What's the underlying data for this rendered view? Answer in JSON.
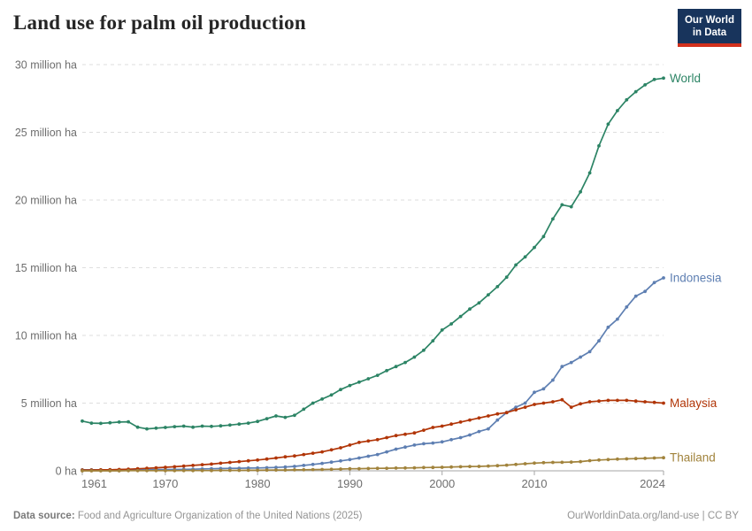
{
  "header": {
    "title": "Land use for palm oil production",
    "logo": {
      "line1": "Our World",
      "line2": "in Data"
    }
  },
  "footer": {
    "source_label": "Data source:",
    "source_text": "Food and Agriculture Organization of the United Nations (2025)",
    "url_text": "OurWorldinData.org/land-use",
    "separator": " | ",
    "license": "CC BY"
  },
  "colors": {
    "world": "#2C8465",
    "indonesia": "#5E7FB2",
    "malaysia": "#B13507",
    "thailand": "#A1833C",
    "grid": "#dedede",
    "axis": "#a6a6a6"
  },
  "chart_data": {
    "type": "line",
    "title": "Land use for palm oil production",
    "unit": "million ha",
    "grid": "horizontal-dashed",
    "legend_position": "right-of-line-end",
    "x_range": [
      1961,
      2024
    ],
    "ylim": [
      0,
      30
    ],
    "xticks": [
      1961,
      1970,
      1980,
      1990,
      2000,
      2010,
      2024
    ],
    "yticks": [
      0,
      5,
      10,
      15,
      20,
      25,
      30
    ],
    "ytick_labels": [
      "0 ha",
      "5 million ha",
      "10 million ha",
      "15 million ha",
      "20 million ha",
      "25 million ha",
      "30 million ha"
    ],
    "years": [
      1961,
      1962,
      1963,
      1964,
      1965,
      1966,
      1967,
      1968,
      1969,
      1970,
      1971,
      1972,
      1973,
      1974,
      1975,
      1976,
      1977,
      1978,
      1979,
      1980,
      1981,
      1982,
      1983,
      1984,
      1985,
      1986,
      1987,
      1988,
      1989,
      1990,
      1991,
      1992,
      1993,
      1994,
      1995,
      1996,
      1997,
      1998,
      1999,
      2000,
      2001,
      2002,
      2003,
      2004,
      2005,
      2006,
      2007,
      2008,
      2009,
      2010,
      2011,
      2012,
      2013,
      2014,
      2015,
      2016,
      2017,
      2018,
      2019,
      2020,
      2021,
      2022,
      2023,
      2024
    ],
    "series": [
      {
        "name": "World",
        "color": "#2C8465",
        "values": [
          3.67,
          3.52,
          3.5,
          3.55,
          3.6,
          3.62,
          3.22,
          3.1,
          3.15,
          3.2,
          3.26,
          3.3,
          3.22,
          3.3,
          3.28,
          3.32,
          3.38,
          3.45,
          3.52,
          3.65,
          3.85,
          4.05,
          3.95,
          4.1,
          4.55,
          5.0,
          5.3,
          5.6,
          6.0,
          6.3,
          6.55,
          6.8,
          7.05,
          7.4,
          7.7,
          8.0,
          8.4,
          8.9,
          9.6,
          10.4,
          10.85,
          11.4,
          11.95,
          12.4,
          13.0,
          13.6,
          14.3,
          15.2,
          15.8,
          16.5,
          17.3,
          18.6,
          19.65,
          19.5,
          20.6,
          22.0,
          24.0,
          25.6,
          26.6,
          27.4,
          28.0,
          28.5,
          28.9,
          29.0
        ]
      },
      {
        "name": "Indonesia",
        "color": "#5E7FB2",
        "values": [
          0.07,
          0.07,
          0.07,
          0.08,
          0.08,
          0.08,
          0.09,
          0.09,
          0.09,
          0.09,
          0.1,
          0.11,
          0.12,
          0.14,
          0.15,
          0.17,
          0.18,
          0.19,
          0.2,
          0.21,
          0.23,
          0.25,
          0.28,
          0.33,
          0.4,
          0.47,
          0.55,
          0.64,
          0.73,
          0.83,
          0.95,
          1.08,
          1.2,
          1.4,
          1.6,
          1.75,
          1.9,
          2.0,
          2.05,
          2.14,
          2.3,
          2.45,
          2.65,
          2.9,
          3.1,
          3.75,
          4.3,
          4.7,
          5.0,
          5.8,
          6.05,
          6.7,
          7.7,
          8.0,
          8.4,
          8.8,
          9.6,
          10.6,
          11.2,
          12.1,
          12.9,
          13.25,
          13.9,
          14.25
        ]
      },
      {
        "name": "Malaysia",
        "color": "#B13507",
        "values": [
          0.06,
          0.06,
          0.07,
          0.08,
          0.1,
          0.12,
          0.15,
          0.18,
          0.22,
          0.26,
          0.3,
          0.35,
          0.4,
          0.45,
          0.5,
          0.56,
          0.62,
          0.68,
          0.74,
          0.8,
          0.87,
          0.95,
          1.03,
          1.1,
          1.2,
          1.3,
          1.4,
          1.55,
          1.7,
          1.9,
          2.1,
          2.2,
          2.3,
          2.45,
          2.6,
          2.7,
          2.8,
          3.0,
          3.2,
          3.3,
          3.45,
          3.6,
          3.75,
          3.9,
          4.05,
          4.2,
          4.3,
          4.5,
          4.7,
          4.9,
          5.0,
          5.1,
          5.25,
          4.7,
          4.95,
          5.1,
          5.15,
          5.2,
          5.2,
          5.2,
          5.15,
          5.1,
          5.05,
          5.0
        ]
      },
      {
        "name": "Thailand",
        "color": "#A1833C",
        "values": [
          0.0,
          0.0,
          0.0,
          0.0,
          0.0,
          0.01,
          0.01,
          0.01,
          0.01,
          0.01,
          0.01,
          0.02,
          0.02,
          0.02,
          0.02,
          0.03,
          0.03,
          0.03,
          0.04,
          0.04,
          0.05,
          0.06,
          0.06,
          0.07,
          0.08,
          0.09,
          0.1,
          0.11,
          0.13,
          0.15,
          0.16,
          0.17,
          0.18,
          0.19,
          0.2,
          0.21,
          0.22,
          0.24,
          0.25,
          0.26,
          0.28,
          0.3,
          0.32,
          0.33,
          0.35,
          0.38,
          0.42,
          0.47,
          0.52,
          0.57,
          0.6,
          0.62,
          0.63,
          0.65,
          0.68,
          0.75,
          0.8,
          0.83,
          0.86,
          0.88,
          0.9,
          0.92,
          0.95,
          0.97
        ]
      }
    ]
  }
}
